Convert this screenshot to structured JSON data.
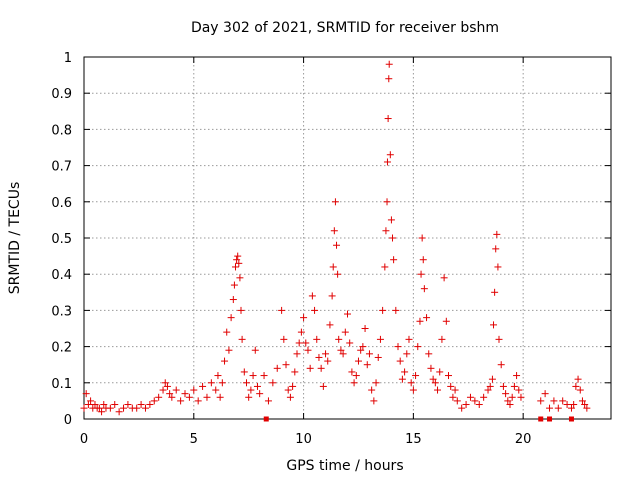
{
  "chart_data": {
    "type": "scatter",
    "title": "Day 302 of 2021, SRMTID for receiver bshm",
    "xlabel": "GPS time / hours",
    "ylabel": "SRMTID / TECUs",
    "xlim": [
      0,
      24
    ],
    "ylim": [
      0,
      1
    ],
    "x_ticks": [
      0,
      5,
      10,
      15,
      20
    ],
    "x_tick_labels": [
      "0",
      "5",
      "10",
      "15",
      "20"
    ],
    "y_ticks": [
      0,
      0.1,
      0.2,
      0.3,
      0.4,
      0.5,
      0.6,
      0.7,
      0.8,
      0.9,
      1
    ],
    "y_tick_labels": [
      "0",
      "0.1",
      "0.2",
      "0.3",
      "0.4",
      "0.5",
      "0.6",
      "0.7",
      "0.8",
      "0.9",
      "1"
    ],
    "grid": true,
    "marker": "+",
    "color": "#e00000",
    "series": [
      {
        "name": "SRMTID",
        "x": [
          0.0,
          0.1,
          0.2,
          0.3,
          0.4,
          0.5,
          0.6,
          0.7,
          0.8,
          0.9,
          1.0,
          1.2,
          1.4,
          1.6,
          1.8,
          2.0,
          2.2,
          2.4,
          2.6,
          2.8,
          3.0,
          3.2,
          3.4,
          3.6,
          3.7,
          3.8,
          3.9,
          4.0,
          4.2,
          4.4,
          4.6,
          4.8,
          5.0,
          5.2,
          5.4,
          5.6,
          5.8,
          6.0,
          6.1,
          6.2,
          6.3,
          6.4,
          6.5,
          6.6,
          6.7,
          6.8,
          6.85,
          6.9,
          6.95,
          7.0,
          7.05,
          7.1,
          7.15,
          7.2,
          7.3,
          7.4,
          7.5,
          7.6,
          7.7,
          7.8,
          7.9,
          8.0,
          8.2,
          8.4,
          8.6,
          8.8,
          9.0,
          9.1,
          9.2,
          9.3,
          9.4,
          9.5,
          9.6,
          9.7,
          9.8,
          9.9,
          10.0,
          10.1,
          10.2,
          10.3,
          10.4,
          10.5,
          10.6,
          10.7,
          10.8,
          10.9,
          11.0,
          11.1,
          11.2,
          11.3,
          11.35,
          11.4,
          11.45,
          11.5,
          11.55,
          11.6,
          11.7,
          11.8,
          11.9,
          12.0,
          12.1,
          12.2,
          12.3,
          12.4,
          12.5,
          12.6,
          12.7,
          12.8,
          12.9,
          13.0,
          13.1,
          13.2,
          13.3,
          13.4,
          13.5,
          13.6,
          13.7,
          13.75,
          13.8,
          13.82,
          13.85,
          13.88,
          13.9,
          13.95,
          14.0,
          14.05,
          14.1,
          14.2,
          14.3,
          14.4,
          14.5,
          14.6,
          14.7,
          14.8,
          14.9,
          15.0,
          15.1,
          15.2,
          15.3,
          15.35,
          15.4,
          15.45,
          15.5,
          15.6,
          15.7,
          15.8,
          15.9,
          16.0,
          16.1,
          16.2,
          16.3,
          16.4,
          16.5,
          16.6,
          16.7,
          16.8,
          16.9,
          17.0,
          17.2,
          17.4,
          17.6,
          17.8,
          18.0,
          18.2,
          18.4,
          18.5,
          18.6,
          18.65,
          18.7,
          18.75,
          18.8,
          18.85,
          18.9,
          19.0,
          19.1,
          19.2,
          19.3,
          19.4,
          19.5,
          19.6,
          19.7,
          19.8,
          19.9,
          20.8,
          21.0,
          21.2,
          21.4,
          21.6,
          21.8,
          22.0,
          22.2,
          22.3,
          22.4,
          22.5,
          22.6,
          22.7,
          22.8,
          22.9
        ],
        "values": [
          0.03,
          0.07,
          0.04,
          0.05,
          0.03,
          0.04,
          0.03,
          0.03,
          0.02,
          0.04,
          0.03,
          0.03,
          0.04,
          0.02,
          0.03,
          0.04,
          0.03,
          0.03,
          0.04,
          0.03,
          0.04,
          0.05,
          0.06,
          0.08,
          0.1,
          0.09,
          0.07,
          0.06,
          0.08,
          0.05,
          0.07,
          0.06,
          0.08,
          0.05,
          0.09,
          0.06,
          0.1,
          0.08,
          0.12,
          0.06,
          0.1,
          0.16,
          0.24,
          0.19,
          0.28,
          0.33,
          0.37,
          0.42,
          0.44,
          0.45,
          0.43,
          0.39,
          0.3,
          0.22,
          0.13,
          0.1,
          0.06,
          0.08,
          0.12,
          0.19,
          0.09,
          0.07,
          0.12,
          0.05,
          0.1,
          0.14,
          0.3,
          0.22,
          0.15,
          0.08,
          0.06,
          0.09,
          0.13,
          0.18,
          0.21,
          0.24,
          0.28,
          0.21,
          0.19,
          0.14,
          0.34,
          0.3,
          0.22,
          0.17,
          0.14,
          0.09,
          0.18,
          0.16,
          0.26,
          0.34,
          0.42,
          0.52,
          0.6,
          0.48,
          0.4,
          0.22,
          0.19,
          0.18,
          0.24,
          0.29,
          0.21,
          0.13,
          0.1,
          0.12,
          0.16,
          0.19,
          0.2,
          0.25,
          0.15,
          0.18,
          0.08,
          0.05,
          0.1,
          0.17,
          0.22,
          0.3,
          0.42,
          0.52,
          0.6,
          0.71,
          0.83,
          0.94,
          0.98,
          0.73,
          0.55,
          0.5,
          0.44,
          0.3,
          0.2,
          0.16,
          0.11,
          0.13,
          0.18,
          0.22,
          0.1,
          0.08,
          0.12,
          0.2,
          0.27,
          0.4,
          0.5,
          0.44,
          0.36,
          0.28,
          0.18,
          0.14,
          0.11,
          0.1,
          0.08,
          0.13,
          0.22,
          0.39,
          0.27,
          0.12,
          0.09,
          0.06,
          0.08,
          0.05,
          0.03,
          0.04,
          0.06,
          0.05,
          0.04,
          0.06,
          0.08,
          0.09,
          0.11,
          0.26,
          0.35,
          0.47,
          0.51,
          0.42,
          0.22,
          0.15,
          0.09,
          0.07,
          0.05,
          0.04,
          0.06,
          0.09,
          0.12,
          0.08,
          0.06,
          0.05,
          0.07,
          0.03,
          0.05,
          0.03,
          0.05,
          0.04,
          0.03,
          0.04,
          0.09,
          0.11,
          0.08,
          0.05,
          0.04,
          0.03
        ]
      }
    ],
    "zero_markers_x": [
      8.3,
      20.8,
      21.2,
      22.2
    ]
  }
}
